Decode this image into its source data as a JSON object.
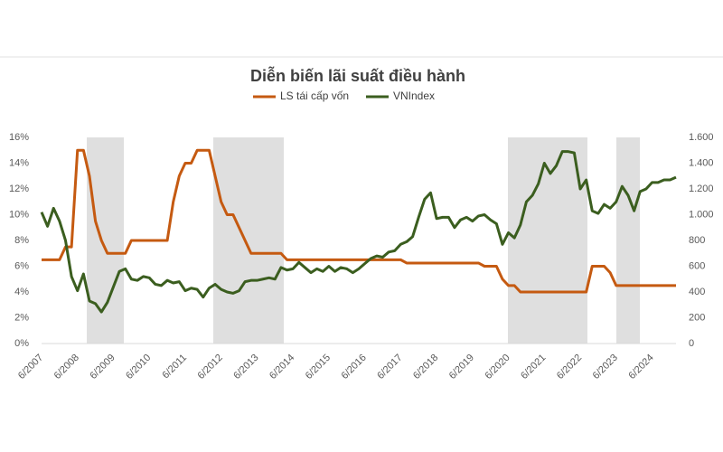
{
  "chart_data": {
    "type": "line",
    "title": "Diễn biến lãi suất điều hành",
    "categories": [
      "6/2007",
      null,
      null,
      null,
      null,
      null,
      "6/2008",
      null,
      null,
      null,
      null,
      null,
      "6/2009",
      null,
      null,
      null,
      null,
      null,
      "6/2010",
      null,
      null,
      null,
      null,
      null,
      "6/2011",
      null,
      null,
      null,
      null,
      null,
      "6/2012",
      null,
      null,
      null,
      null,
      null,
      "6/2013",
      null,
      null,
      null,
      null,
      null,
      "6/2014",
      null,
      null,
      null,
      null,
      null,
      "6/2015",
      null,
      null,
      null,
      null,
      null,
      "6/2016",
      null,
      null,
      null,
      null,
      null,
      "6/2017",
      null,
      null,
      null,
      null,
      null,
      "6/2018",
      null,
      null,
      null,
      null,
      null,
      "6/2019",
      null,
      null,
      null,
      null,
      null,
      "6/2020",
      null,
      null,
      null,
      null,
      null,
      "6/2021",
      null,
      null,
      null,
      null,
      null,
      "6/2022",
      null,
      null,
      null,
      null,
      null,
      "6/2023",
      null,
      null,
      null,
      null,
      null,
      "6/2024",
      null,
      null,
      null,
      null
    ],
    "series": [
      {
        "name": "LS  tái cấp vốn",
        "color": "#c55a11",
        "values": [
          6.5,
          6.5,
          6.5,
          6.5,
          7.5,
          7.5,
          15,
          15,
          13,
          9.5,
          8,
          7,
          7,
          7,
          7,
          8,
          8,
          8,
          8,
          8,
          8,
          8,
          11,
          13,
          14,
          14,
          15,
          15,
          15,
          13,
          11,
          10,
          10,
          9,
          8,
          7,
          7,
          7,
          7,
          7,
          7,
          6.5,
          6.5,
          6.5,
          6.5,
          6.5,
          6.5,
          6.5,
          6.5,
          6.5,
          6.5,
          6.5,
          6.5,
          6.5,
          6.5,
          6.5,
          6.5,
          6.5,
          6.5,
          6.5,
          6.5,
          6.25,
          6.25,
          6.25,
          6.25,
          6.25,
          6.25,
          6.25,
          6.25,
          6.25,
          6.25,
          6.25,
          6.25,
          6.25,
          6,
          6,
          6,
          5,
          4.5,
          4.5,
          4,
          4,
          4,
          4,
          4,
          4,
          4,
          4,
          4,
          4,
          4,
          4,
          6,
          6,
          6,
          5.5,
          4.5,
          4.5,
          4.5,
          4.5,
          4.5,
          4.5,
          4.5,
          4.5,
          4.5,
          4.5,
          4.5
        ]
      },
      {
        "name": "VNIndex",
        "color": "#3b5e1f",
        "axis": "y2",
        "values": [
          1020,
          910,
          1050,
          950,
          800,
          520,
          410,
          540,
          330,
          310,
          245,
          320,
          440,
          560,
          580,
          500,
          490,
          520,
          510,
          460,
          450,
          490,
          470,
          480,
          410,
          430,
          420,
          360,
          430,
          460,
          420,
          400,
          390,
          410,
          480,
          490,
          490,
          500,
          510,
          500,
          590,
          570,
          580,
          630,
          590,
          550,
          580,
          560,
          600,
          560,
          590,
          580,
          550,
          580,
          620,
          660,
          680,
          670,
          710,
          720,
          770,
          790,
          830,
          980,
          1120,
          1170,
          970,
          980,
          980,
          900,
          960,
          980,
          950,
          990,
          1000,
          960,
          930,
          770,
          860,
          820,
          920,
          1100,
          1150,
          1240,
          1400,
          1320,
          1380,
          1490,
          1490,
          1480,
          1200,
          1270,
          1030,
          1010,
          1080,
          1050,
          1100,
          1220,
          1150,
          1030,
          1180,
          1200,
          1250,
          1250,
          1270,
          1270,
          1290
        ]
      }
    ],
    "ylim": [
      0,
      16
    ],
    "yticks": [
      {
        "value": 0,
        "label": "0%"
      },
      {
        "value": 2,
        "label": "2%"
      },
      {
        "value": 4,
        "label": "4%"
      },
      {
        "value": 6,
        "label": "6%"
      },
      {
        "value": 8,
        "label": "8%"
      },
      {
        "value": 10,
        "label": "10%"
      },
      {
        "value": 12,
        "label": "12%"
      },
      {
        "value": 14,
        "label": "14%"
      },
      {
        "value": 16,
        "label": "16%"
      }
    ],
    "y2lim": [
      0,
      1600
    ],
    "y2ticks": [
      0,
      200,
      400,
      600,
      800,
      {
        "value": 1000,
        "label": "1.000"
      },
      {
        "value": 1200,
        "label": "1.200"
      },
      {
        "value": 1400,
        "label": "1.400"
      },
      {
        "value": 1600,
        "label": "1.600"
      }
    ],
    "grid": false
  }
}
